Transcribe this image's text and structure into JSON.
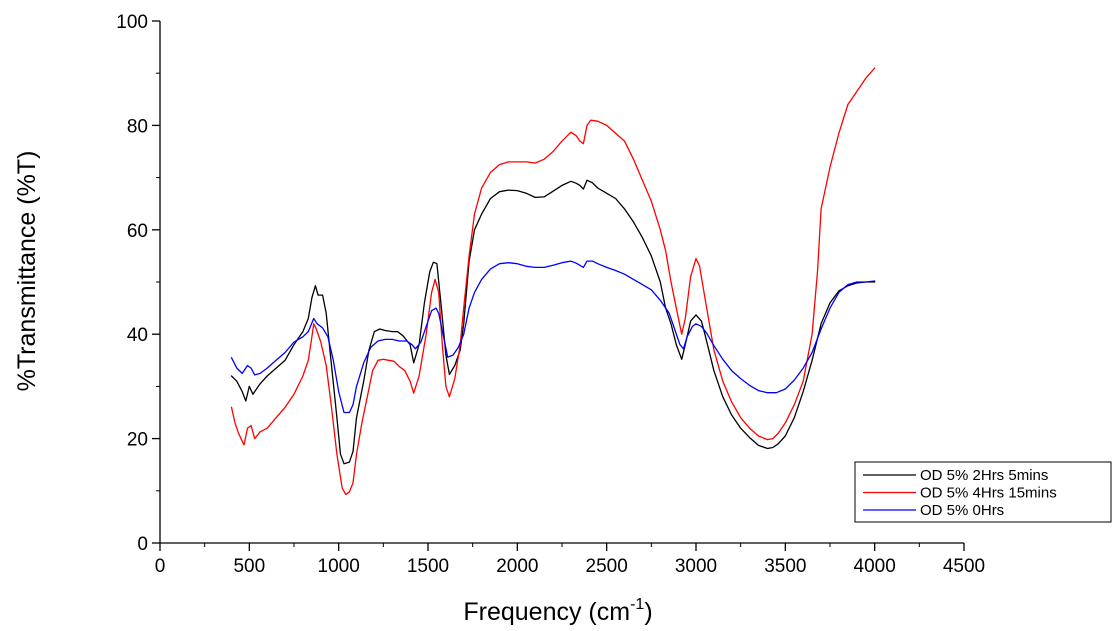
{
  "chart_data": {
    "type": "line",
    "xlabel": "Frequency (cm",
    "xlabel_superscript": "-1",
    "xlabel_suffix": ")",
    "ylabel": "%Transmittance (%T)",
    "xlim": [
      0,
      4500
    ],
    "ylim": [
      0,
      100
    ],
    "x_ticks": [
      0,
      500,
      1000,
      1500,
      2000,
      2500,
      3000,
      3500,
      4000,
      4500
    ],
    "y_ticks": [
      0,
      20,
      40,
      60,
      80,
      100
    ],
    "grid": false,
    "legend_position": "bottom-right",
    "series": [
      {
        "name": "OD 5% 2Hrs 5mins",
        "color": "#000000",
        "points": [
          [
            400,
            32
          ],
          [
            430,
            31
          ],
          [
            460,
            29
          ],
          [
            480,
            27.2
          ],
          [
            500,
            30
          ],
          [
            520,
            28.5
          ],
          [
            560,
            30.5
          ],
          [
            600,
            32
          ],
          [
            700,
            35
          ],
          [
            750,
            38
          ],
          [
            800,
            40.5
          ],
          [
            830,
            43
          ],
          [
            850,
            47
          ],
          [
            870,
            49.3
          ],
          [
            885,
            47.5
          ],
          [
            910,
            47.5
          ],
          [
            930,
            44
          ],
          [
            960,
            34
          ],
          [
            990,
            24
          ],
          [
            1010,
            17
          ],
          [
            1030,
            15.2
          ],
          [
            1060,
            15.5
          ],
          [
            1080,
            17.5
          ],
          [
            1100,
            24
          ],
          [
            1140,
            31
          ],
          [
            1170,
            37
          ],
          [
            1200,
            40.5
          ],
          [
            1230,
            41
          ],
          [
            1260,
            40.7
          ],
          [
            1300,
            40.5
          ],
          [
            1330,
            40.5
          ],
          [
            1360,
            39.7
          ],
          [
            1400,
            38
          ],
          [
            1420,
            34.5
          ],
          [
            1450,
            38
          ],
          [
            1480,
            46
          ],
          [
            1510,
            52
          ],
          [
            1530,
            53.8
          ],
          [
            1550,
            53.5
          ],
          [
            1575,
            45
          ],
          [
            1600,
            36
          ],
          [
            1620,
            32.3
          ],
          [
            1650,
            34
          ],
          [
            1680,
            37
          ],
          [
            1700,
            42
          ],
          [
            1730,
            54
          ],
          [
            1760,
            60
          ],
          [
            1800,
            63
          ],
          [
            1850,
            66
          ],
          [
            1900,
            67.3
          ],
          [
            1950,
            67.6
          ],
          [
            2000,
            67.5
          ],
          [
            2050,
            67
          ],
          [
            2100,
            66.2
          ],
          [
            2150,
            66.3
          ],
          [
            2200,
            67.4
          ],
          [
            2250,
            68.5
          ],
          [
            2300,
            69.3
          ],
          [
            2330,
            68.9
          ],
          [
            2350,
            68.5
          ],
          [
            2370,
            67.8
          ],
          [
            2390,
            69.5
          ],
          [
            2420,
            69
          ],
          [
            2450,
            68
          ],
          [
            2500,
            67
          ],
          [
            2550,
            66
          ],
          [
            2600,
            64
          ],
          [
            2650,
            61.5
          ],
          [
            2700,
            58.5
          ],
          [
            2750,
            55
          ],
          [
            2800,
            50
          ],
          [
            2830,
            45
          ],
          [
            2860,
            42
          ],
          [
            2890,
            38
          ],
          [
            2920,
            35.2
          ],
          [
            2940,
            38
          ],
          [
            2970,
            42.5
          ],
          [
            3000,
            43.7
          ],
          [
            3030,
            42.5
          ],
          [
            3050,
            40
          ],
          [
            3100,
            33
          ],
          [
            3150,
            28
          ],
          [
            3200,
            24.5
          ],
          [
            3250,
            22
          ],
          [
            3300,
            20.2
          ],
          [
            3350,
            18.7
          ],
          [
            3400,
            18.1
          ],
          [
            3430,
            18.3
          ],
          [
            3460,
            19
          ],
          [
            3500,
            20.5
          ],
          [
            3550,
            24
          ],
          [
            3600,
            29
          ],
          [
            3650,
            35
          ],
          [
            3700,
            42
          ],
          [
            3750,
            46
          ],
          [
            3800,
            48.3
          ],
          [
            3850,
            49.3
          ],
          [
            3900,
            49.8
          ],
          [
            3950,
            50
          ],
          [
            4000,
            50
          ]
        ]
      },
      {
        "name": "OD 5% 4Hrs 15mins",
        "color": "#ff0000",
        "points": [
          [
            400,
            26
          ],
          [
            420,
            23
          ],
          [
            440,
            21
          ],
          [
            460,
            19.5
          ],
          [
            470,
            18.8
          ],
          [
            490,
            22
          ],
          [
            510,
            22.5
          ],
          [
            530,
            20
          ],
          [
            560,
            21.3
          ],
          [
            600,
            22
          ],
          [
            650,
            24
          ],
          [
            700,
            26
          ],
          [
            750,
            28.5
          ],
          [
            800,
            32
          ],
          [
            830,
            35
          ],
          [
            850,
            39.5
          ],
          [
            860,
            42
          ],
          [
            875,
            41
          ],
          [
            900,
            38.5
          ],
          [
            930,
            34
          ],
          [
            960,
            26
          ],
          [
            990,
            17
          ],
          [
            1020,
            10.5
          ],
          [
            1040,
            9.3
          ],
          [
            1060,
            9.8
          ],
          [
            1080,
            11.5
          ],
          [
            1100,
            17
          ],
          [
            1130,
            23
          ],
          [
            1160,
            28
          ],
          [
            1190,
            33
          ],
          [
            1220,
            35
          ],
          [
            1250,
            35.2
          ],
          [
            1280,
            35
          ],
          [
            1310,
            34.8
          ],
          [
            1340,
            33.8
          ],
          [
            1370,
            33
          ],
          [
            1400,
            31
          ],
          [
            1420,
            28.7
          ],
          [
            1450,
            32
          ],
          [
            1490,
            40
          ],
          [
            1520,
            48
          ],
          [
            1540,
            50.5
          ],
          [
            1560,
            48
          ],
          [
            1580,
            38
          ],
          [
            1600,
            30
          ],
          [
            1620,
            28
          ],
          [
            1650,
            31.5
          ],
          [
            1680,
            38
          ],
          [
            1700,
            45
          ],
          [
            1730,
            55
          ],
          [
            1760,
            63
          ],
          [
            1800,
            68
          ],
          [
            1850,
            71
          ],
          [
            1900,
            72.5
          ],
          [
            1950,
            73
          ],
          [
            2000,
            73
          ],
          [
            2050,
            73
          ],
          [
            2100,
            72.8
          ],
          [
            2150,
            73.5
          ],
          [
            2200,
            75
          ],
          [
            2250,
            77
          ],
          [
            2300,
            78.7
          ],
          [
            2330,
            78
          ],
          [
            2350,
            77
          ],
          [
            2370,
            76.5
          ],
          [
            2390,
            80
          ],
          [
            2410,
            81
          ],
          [
            2450,
            80.8
          ],
          [
            2500,
            80
          ],
          [
            2550,
            78.5
          ],
          [
            2600,
            77
          ],
          [
            2650,
            73.5
          ],
          [
            2700,
            69.5
          ],
          [
            2750,
            65.5
          ],
          [
            2800,
            60
          ],
          [
            2830,
            56
          ],
          [
            2860,
            50
          ],
          [
            2890,
            45
          ],
          [
            2920,
            40
          ],
          [
            2940,
            43
          ],
          [
            2970,
            51
          ],
          [
            3000,
            54.5
          ],
          [
            3020,
            53
          ],
          [
            3050,
            47
          ],
          [
            3100,
            37
          ],
          [
            3150,
            31
          ],
          [
            3200,
            27
          ],
          [
            3250,
            24
          ],
          [
            3300,
            22
          ],
          [
            3350,
            20.5
          ],
          [
            3400,
            19.8
          ],
          [
            3430,
            20
          ],
          [
            3460,
            21
          ],
          [
            3500,
            23
          ],
          [
            3550,
            26.5
          ],
          [
            3600,
            31
          ],
          [
            3650,
            40
          ],
          [
            3680,
            52
          ],
          [
            3700,
            64
          ],
          [
            3750,
            72
          ],
          [
            3800,
            78.5
          ],
          [
            3850,
            84
          ],
          [
            3900,
            86.5
          ],
          [
            3950,
            89
          ],
          [
            4000,
            91
          ]
        ]
      },
      {
        "name": "OD 5% 0Hrs",
        "color": "#0000ff",
        "points": [
          [
            400,
            35.5
          ],
          [
            430,
            33.5
          ],
          [
            460,
            32.5
          ],
          [
            490,
            34
          ],
          [
            510,
            33.5
          ],
          [
            530,
            32.2
          ],
          [
            560,
            32.5
          ],
          [
            600,
            33.5
          ],
          [
            650,
            35
          ],
          [
            700,
            36.5
          ],
          [
            750,
            38.5
          ],
          [
            800,
            39.5
          ],
          [
            830,
            40.5
          ],
          [
            860,
            43
          ],
          [
            880,
            42
          ],
          [
            910,
            41.2
          ],
          [
            940,
            39.5
          ],
          [
            970,
            35
          ],
          [
            1000,
            29
          ],
          [
            1030,
            25
          ],
          [
            1060,
            25
          ],
          [
            1080,
            26.5
          ],
          [
            1100,
            30
          ],
          [
            1140,
            34.5
          ],
          [
            1180,
            37.5
          ],
          [
            1220,
            38.7
          ],
          [
            1260,
            39
          ],
          [
            1300,
            39
          ],
          [
            1340,
            38.7
          ],
          [
            1380,
            38.7
          ],
          [
            1410,
            38
          ],
          [
            1430,
            37.2
          ],
          [
            1460,
            38.5
          ],
          [
            1490,
            41.5
          ],
          [
            1520,
            44.5
          ],
          [
            1545,
            45
          ],
          [
            1560,
            44
          ],
          [
            1590,
            39
          ],
          [
            1610,
            35.6
          ],
          [
            1640,
            36
          ],
          [
            1670,
            37.5
          ],
          [
            1700,
            40
          ],
          [
            1730,
            45
          ],
          [
            1760,
            48
          ],
          [
            1800,
            50.5
          ],
          [
            1850,
            52.5
          ],
          [
            1900,
            53.5
          ],
          [
            1950,
            53.7
          ],
          [
            2000,
            53.5
          ],
          [
            2050,
            53
          ],
          [
            2100,
            52.8
          ],
          [
            2150,
            52.8
          ],
          [
            2200,
            53.2
          ],
          [
            2250,
            53.7
          ],
          [
            2300,
            54
          ],
          [
            2330,
            53.6
          ],
          [
            2350,
            53.2
          ],
          [
            2370,
            52.8
          ],
          [
            2390,
            54
          ],
          [
            2420,
            54
          ],
          [
            2450,
            53.5
          ],
          [
            2500,
            52.8
          ],
          [
            2550,
            52.2
          ],
          [
            2600,
            51.5
          ],
          [
            2650,
            50.5
          ],
          [
            2700,
            49.5
          ],
          [
            2750,
            48.5
          ],
          [
            2800,
            46.5
          ],
          [
            2850,
            44
          ],
          [
            2880,
            41
          ],
          [
            2910,
            38
          ],
          [
            2930,
            37.2
          ],
          [
            2950,
            39.5
          ],
          [
            2980,
            41.5
          ],
          [
            3000,
            42
          ],
          [
            3030,
            41.5
          ],
          [
            3060,
            40.2
          ],
          [
            3100,
            37.8
          ],
          [
            3150,
            35.2
          ],
          [
            3200,
            33
          ],
          [
            3250,
            31.5
          ],
          [
            3300,
            30.2
          ],
          [
            3350,
            29.2
          ],
          [
            3400,
            28.8
          ],
          [
            3450,
            28.8
          ],
          [
            3500,
            29.5
          ],
          [
            3550,
            31.2
          ],
          [
            3600,
            33.5
          ],
          [
            3650,
            36.5
          ],
          [
            3700,
            41
          ],
          [
            3750,
            45
          ],
          [
            3800,
            48
          ],
          [
            3850,
            49.5
          ],
          [
            3900,
            50
          ],
          [
            3950,
            50
          ],
          [
            4000,
            50.2
          ]
        ]
      }
    ]
  }
}
